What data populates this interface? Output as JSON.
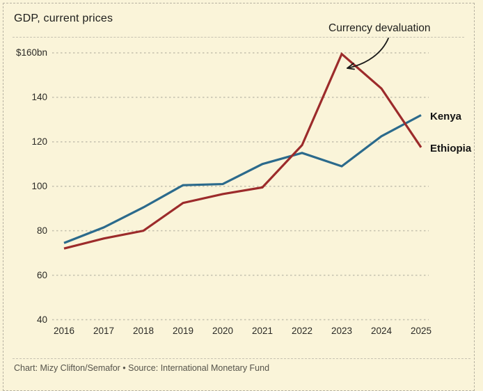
{
  "card": {
    "title": "GDP, current prices",
    "footer": "Chart: Mizy Clifton/Semafor • Source: International Monetary Fund"
  },
  "annotation": {
    "label": "Currency devaluation"
  },
  "series_labels": {
    "kenya": "Kenya",
    "ethiopia": "Ethiopia"
  },
  "colors": {
    "background": "#faf4d9",
    "kenya_line": "#2b6a8c",
    "ethiopia_line": "#9c2b2b",
    "gridline": "#c4c0ae",
    "border_dash": "#b7b2a2",
    "arrow": "#1a1a1a"
  },
  "chart_data": {
    "type": "line",
    "title": "GDP, current prices",
    "x": [
      2016,
      2017,
      2018,
      2019,
      2020,
      2021,
      2022,
      2023,
      2024,
      2025
    ],
    "series": [
      {
        "name": "Kenya",
        "color": "#2b6a8c",
        "values": [
          74.5,
          81.5,
          90.5,
          100.5,
          101,
          110,
          115,
          109,
          122.5,
          132
        ]
      },
      {
        "name": "Ethiopia",
        "color": "#9c2b2b",
        "values": [
          72,
          76.5,
          80,
          92.5,
          96.5,
          99.5,
          118.5,
          159.5,
          144,
          117.5
        ]
      }
    ],
    "ylabel_top": "$160bn",
    "yticks": [
      40,
      60,
      80,
      100,
      120,
      140,
      160
    ],
    "ylim": [
      40,
      160
    ],
    "grid": "horizontal-dashed",
    "legend_position": "end-of-line-right",
    "annotations": [
      {
        "text": "Currency devaluation",
        "target_series": "Ethiopia",
        "target_x": 2023,
        "target_value": 159.5
      }
    ],
    "source": "International Monetary Fund",
    "credit": "Chart: Mizy Clifton/Semafor"
  }
}
